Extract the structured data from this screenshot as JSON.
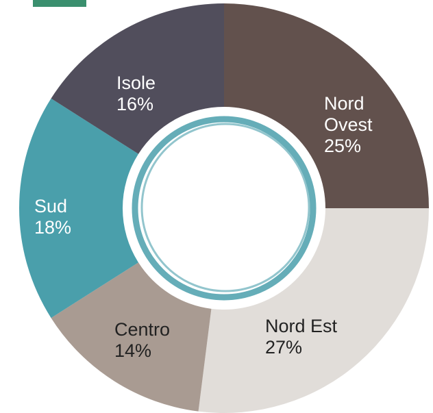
{
  "chart_data": {
    "type": "donut",
    "categories": [
      "Nord Ovest",
      "Nord Est",
      "Centro",
      "Sud",
      "Isole"
    ],
    "values": [
      25,
      27,
      14,
      18,
      16
    ],
    "value_labels": [
      "25%",
      "27%",
      "14%",
      "18%",
      "16%"
    ],
    "colors": [
      "#62514d",
      "#e1ddd9",
      "#a99b92",
      "#4a9fab",
      "#514e5c"
    ]
  }
}
